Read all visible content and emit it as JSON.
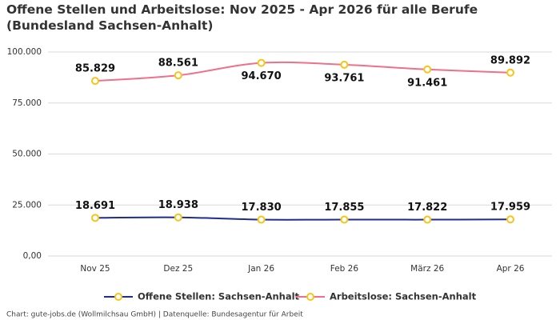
{
  "chart_data": {
    "type": "line",
    "title": "Offene Stellen und Arbeitslose: Nov 2025 - Apr 2026 für alle Berufe (Bundesland Sachsen-Anhalt)",
    "categories": [
      "Nov 25",
      "Dez 25",
      "Jan 26",
      "Feb 26",
      "März 26",
      "Apr 26"
    ],
    "series": [
      {
        "name": "Offene Stellen: Sachsen-Anhalt",
        "color": "#1f2d8f",
        "values": [
          18691,
          18938,
          17830,
          17855,
          17822,
          17959
        ],
        "value_labels": [
          "18.691",
          "18.938",
          "17.830",
          "17.855",
          "17.822",
          "17.959"
        ]
      },
      {
        "name": "Arbeitslose: Sachsen-Anhalt",
        "color": "#f0708a",
        "values": [
          85829,
          88561,
          94670,
          93761,
          91461,
          89892
        ],
        "value_labels": [
          "85.829",
          "88.561",
          "94.670",
          "93.761",
          "91.461",
          "89.892"
        ]
      }
    ],
    "marker_fill": "#ffffff",
    "marker_color": "#f5c518",
    "ylim": [
      0,
      100000
    ],
    "yticks": [
      {
        "value": 0,
        "label": "0,00"
      },
      {
        "value": 25000,
        "label": "25.000"
      },
      {
        "value": 50000,
        "label": "50.000"
      },
      {
        "value": 75000,
        "label": "75.000"
      },
      {
        "value": 100000,
        "label": "100.000"
      }
    ],
    "grid": true,
    "legend": "bottom",
    "source": "Chart: gute-jobs.de (Wollmilchsau GmbH) | Datenquelle: Bundesagentur für Arbeit"
  }
}
